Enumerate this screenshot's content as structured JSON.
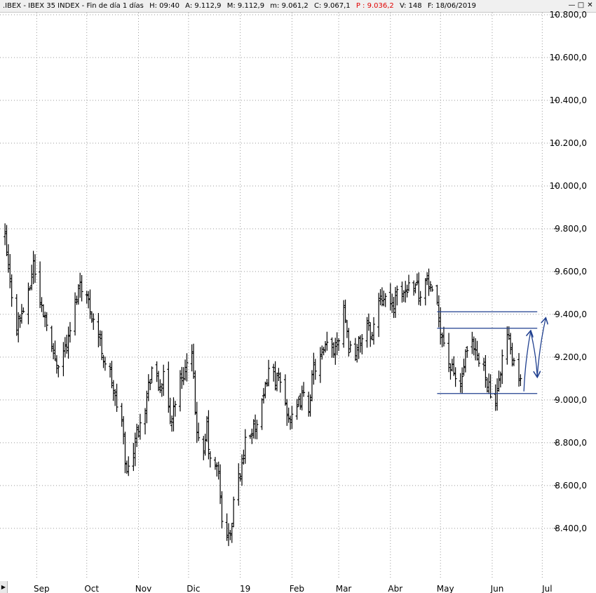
{
  "title_bar": {
    "symbol": ".IBEX - IBEX 35 INDEX - Fin de día 1 días",
    "hour": "H: 09:40",
    "open": "A: 9.112,9",
    "high": "M: 9.112,9",
    "low": "m: 9.061,2",
    "close": "C: 9.067,1",
    "price": "P : 9.036,2",
    "volume": "V: 148",
    "date": "F: 18/06/2019",
    "price_color": "#e00000",
    "buttons": [
      "minimize-icon",
      "maximize-icon",
      "close-icon"
    ]
  },
  "chart_data": {
    "type": "ohlc",
    "y_axis": {
      "labels": [
        "10.800,0",
        "10.600,0",
        "10.400,0",
        "10.200,0",
        "10.000,0",
        "9.800,0",
        "9.600,0",
        "9.400,0",
        "9.200,0",
        "9.000,0",
        "8.800,0",
        "8.600,0",
        "8.400,0"
      ],
      "values": [
        10800,
        10600,
        10400,
        10200,
        10000,
        9800,
        9600,
        9400,
        9200,
        9000,
        8800,
        8600,
        8400
      ],
      "range": [
        8160,
        10810
      ],
      "position": "right"
    },
    "x_axis": {
      "labels": [
        "Sep",
        "Oct",
        "Nov",
        "Dic",
        "19",
        "Feb",
        "Mar",
        "Abr",
        "May",
        "Jun",
        "Jul"
      ],
      "range": [
        "2018-08-10",
        "2019-07-08"
      ]
    },
    "grid": true,
    "bar_color": "#000000",
    "annotation_color": "#1f3f8f",
    "anchors": [
      [
        "2018-08-13",
        9750
      ],
      [
        "2018-08-15",
        9600
      ],
      [
        "2018-08-20",
        9350
      ],
      [
        "2018-08-27",
        9480
      ],
      [
        "2018-08-30",
        9650
      ],
      [
        "2018-09-03",
        9450
      ],
      [
        "2018-09-07",
        9380
      ],
      [
        "2018-09-11",
        9200
      ],
      [
        "2018-09-14",
        9180
      ],
      [
        "2018-09-20",
        9280
      ],
      [
        "2018-09-24",
        9450
      ],
      [
        "2018-09-27",
        9560
      ],
      [
        "2018-10-01",
        9480
      ],
      [
        "2018-10-05",
        9380
      ],
      [
        "2018-10-08",
        9300
      ],
      [
        "2018-10-11",
        9200
      ],
      [
        "2018-10-15",
        9120
      ],
      [
        "2018-10-18",
        9000
      ],
      [
        "2018-10-22",
        8900
      ],
      [
        "2018-10-25",
        8650
      ],
      [
        "2018-10-29",
        8780
      ],
      [
        "2018-11-02",
        8920
      ],
      [
        "2018-11-05",
        8980
      ],
      [
        "2018-11-09",
        9150
      ],
      [
        "2018-11-13",
        9060
      ],
      [
        "2018-11-16",
        9100
      ],
      [
        "2018-11-20",
        8900
      ],
      [
        "2018-11-23",
        9000
      ],
      [
        "2018-11-26",
        9080
      ],
      [
        "2018-11-29",
        9150
      ],
      [
        "2018-12-03",
        9200
      ],
      [
        "2018-12-05",
        8950
      ],
      [
        "2018-12-07",
        8800
      ],
      [
        "2018-12-10",
        8730
      ],
      [
        "2018-12-12",
        8880
      ],
      [
        "2018-12-14",
        8700
      ],
      [
        "2018-12-17",
        8700
      ],
      [
        "2018-12-19",
        8650
      ],
      [
        "2018-12-21",
        8450
      ],
      [
        "2018-12-24",
        8350
      ],
      [
        "2018-12-27",
        8400
      ],
      [
        "2018-12-28",
        8530
      ],
      [
        "2019-01-02",
        8700
      ],
      [
        "2019-01-04",
        8820
      ],
      [
        "2019-01-08",
        8860
      ],
      [
        "2019-01-11",
        8880
      ],
      [
        "2019-01-15",
        9000
      ],
      [
        "2019-01-18",
        9150
      ],
      [
        "2019-01-22",
        9100
      ],
      [
        "2019-01-25",
        9080
      ],
      [
        "2019-01-29",
        8950
      ],
      [
        "2019-02-01",
        8900
      ],
      [
        "2019-02-04",
        8950
      ],
      [
        "2019-02-07",
        9020
      ],
      [
        "2019-02-11",
        8970
      ],
      [
        "2019-02-14",
        9150
      ],
      [
        "2019-02-19",
        9200
      ],
      [
        "2019-02-22",
        9250
      ],
      [
        "2019-02-26",
        9240
      ],
      [
        "2019-03-01",
        9300
      ],
      [
        "2019-03-04",
        9450
      ],
      [
        "2019-03-07",
        9250
      ],
      [
        "2019-03-11",
        9220
      ],
      [
        "2019-03-14",
        9280
      ],
      [
        "2019-03-18",
        9350
      ],
      [
        "2019-03-21",
        9300
      ],
      [
        "2019-03-25",
        9480
      ],
      [
        "2019-03-28",
        9500
      ],
      [
        "2019-04-01",
        9420
      ],
      [
        "2019-04-04",
        9480
      ],
      [
        "2019-04-09",
        9500
      ],
      [
        "2019-04-12",
        9540
      ],
      [
        "2019-04-16",
        9560
      ],
      [
        "2019-04-18",
        9500
      ],
      [
        "2019-04-23",
        9560
      ],
      [
        "2019-04-26",
        9480
      ],
      [
        "2019-04-29",
        9420
      ],
      [
        "2019-05-02",
        9300
      ],
      [
        "2019-05-07",
        9150
      ],
      [
        "2019-05-10",
        9100
      ],
      [
        "2019-05-13",
        9060
      ],
      [
        "2019-05-16",
        9200
      ],
      [
        "2019-05-20",
        9250
      ],
      [
        "2019-05-23",
        9180
      ],
      [
        "2019-05-27",
        9160
      ],
      [
        "2019-05-30",
        9060
      ],
      [
        "2019-06-03",
        8950
      ],
      [
        "2019-06-05",
        9100
      ],
      [
        "2019-06-07",
        9200
      ],
      [
        "2019-06-10",
        9300
      ],
      [
        "2019-06-12",
        9230
      ],
      [
        "2019-06-14",
        9150
      ],
      [
        "2019-06-18",
        9067
      ]
    ],
    "annotations": {
      "hlines": [
        {
          "y": 9412,
          "from": "2019-04-29",
          "to": "2019-06-28"
        },
        {
          "y": 9335,
          "from": "2019-04-29",
          "to": "2019-06-28"
        },
        {
          "y": 9030,
          "from": "2019-04-29",
          "to": "2019-06-28"
        }
      ],
      "projection": [
        [
          "2019-06-20",
          9040
        ],
        [
          "2019-06-24",
          9320
        ],
        [
          "2019-06-28",
          9110
        ],
        [
          "2019-07-03",
          9380
        ]
      ]
    }
  }
}
